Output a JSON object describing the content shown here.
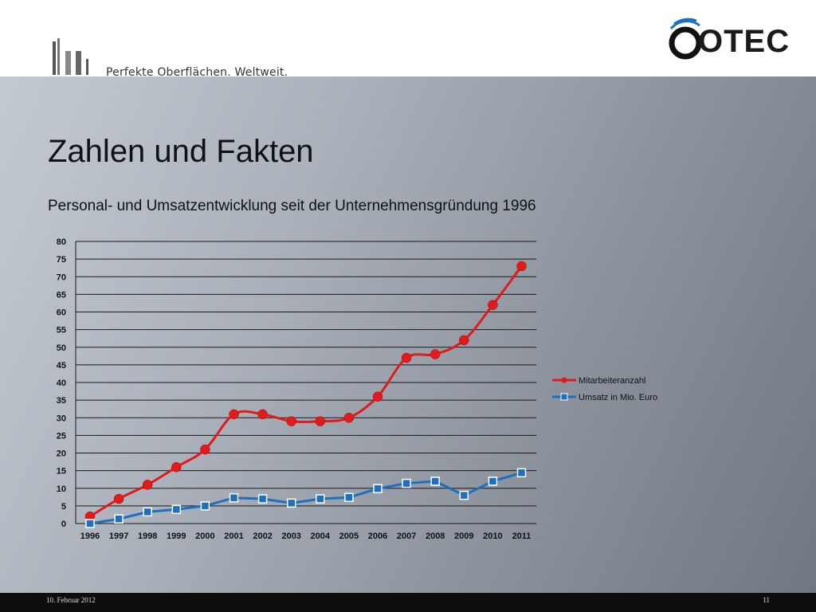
{
  "header": {
    "tagline": "Perfekte Oberflächen. Weltweit.",
    "brand": "OTEC"
  },
  "slide": {
    "title": "Zahlen und Fakten",
    "subtitle": "Personal- und Umsatzentwicklung seit der Unternehmensgründung 1996"
  },
  "chart_data": {
    "type": "line",
    "categories": [
      "1996",
      "1997",
      "1998",
      "1999",
      "2000",
      "2001",
      "2002",
      "2003",
      "2004",
      "2005",
      "2006",
      "2007",
      "2008",
      "2009",
      "2010",
      "2011"
    ],
    "series": [
      {
        "name": "Mitarbeiteranzahl",
        "color": "#e01b1b",
        "marker": "circle",
        "values": [
          2,
          7,
          11,
          16,
          21,
          31,
          31,
          29,
          29,
          30,
          36,
          47,
          48,
          52,
          62,
          73
        ]
      },
      {
        "name": "Umsatz in Mio. Euro",
        "color": "#1f6fc1",
        "marker": "square",
        "values": [
          0,
          1.3,
          3.3,
          4,
          5,
          7.3,
          7,
          5.8,
          7,
          7.4,
          9.9,
          11.4,
          12,
          8,
          12,
          14.4
        ]
      }
    ],
    "yticks": [
      0,
      5,
      10,
      15,
      20,
      25,
      30,
      35,
      40,
      45,
      50,
      55,
      60,
      65,
      70,
      75,
      80
    ],
    "ylim": [
      0,
      80
    ],
    "grid": true,
    "legend": "right"
  },
  "footer": {
    "date": "10. Februar 2012",
    "page": "11"
  }
}
